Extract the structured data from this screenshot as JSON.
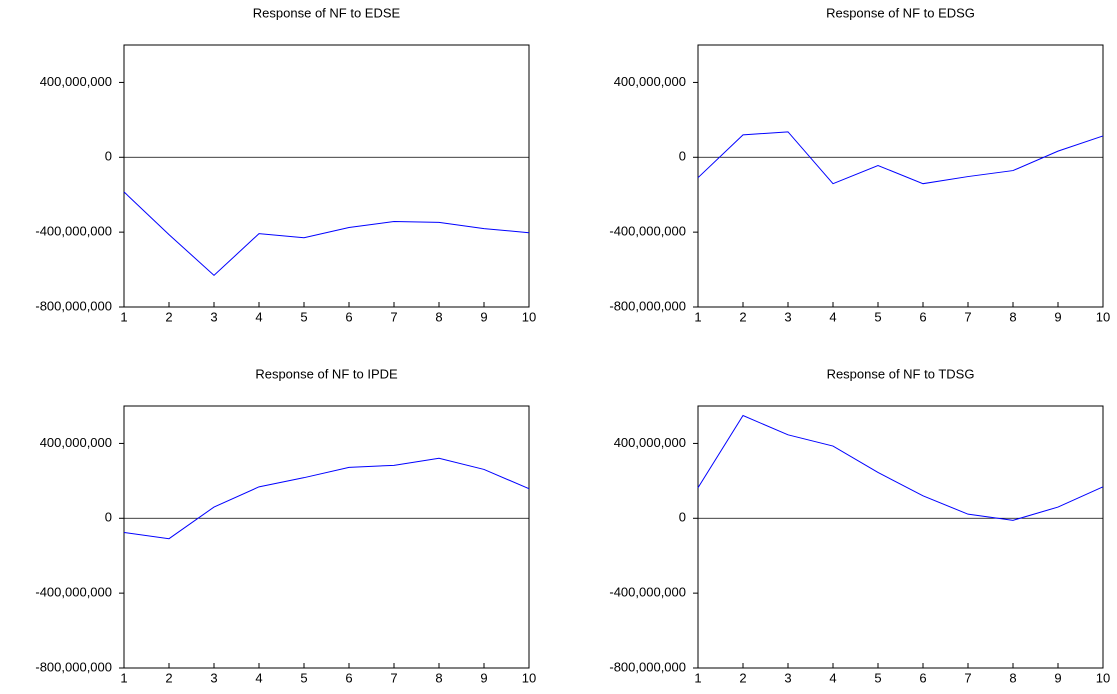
{
  "chart_data": [
    {
      "type": "line",
      "title": "Response of NF to EDSE",
      "x": [
        1,
        2,
        3,
        4,
        5,
        6,
        7,
        8,
        9,
        10
      ],
      "xlim": [
        1,
        10
      ],
      "xticks": [
        1,
        2,
        3,
        4,
        5,
        6,
        7,
        8,
        9,
        10
      ],
      "ylim": [
        -800000000,
        600000000
      ],
      "yticks": [
        {
          "value": -800000000,
          "label": "-800,000,000"
        },
        {
          "value": -400000000,
          "label": "-400,000,000"
        },
        0,
        {
          "value": 400000000,
          "label": "400,000,000"
        }
      ],
      "zero_line": true,
      "series": [
        {
          "color": "#0000ff",
          "values": [
            -185000000,
            -413000000,
            -631000000,
            -408000000,
            -430000000,
            -375000000,
            -343000000,
            -348000000,
            -381000000,
            -403000000
          ]
        }
      ]
    },
    {
      "type": "line",
      "title": "Response of NF to EDSG",
      "x": [
        1,
        2,
        3,
        4,
        5,
        6,
        7,
        8,
        9,
        10
      ],
      "xlim": [
        1,
        10
      ],
      "xticks": [
        1,
        2,
        3,
        4,
        5,
        6,
        7,
        8,
        9,
        10
      ],
      "ylim": [
        -800000000,
        600000000
      ],
      "yticks": [
        {
          "value": -800000000,
          "label": "-800,000,000"
        },
        {
          "value": -400000000,
          "label": "-400,000,000"
        },
        0,
        {
          "value": 400000000,
          "label": "400,000,000"
        }
      ],
      "zero_line": true,
      "series": [
        {
          "color": "#0000ff",
          "values": [
            -109000000,
            120000000,
            136000000,
            -141000000,
            -44000000,
            -141000000,
            -103000000,
            -71000000,
            33000000,
            114000000
          ]
        }
      ]
    },
    {
      "type": "line",
      "title": "Response of NF to IPDE",
      "x": [
        1,
        2,
        3,
        4,
        5,
        6,
        7,
        8,
        9,
        10
      ],
      "xlim": [
        1,
        10
      ],
      "xticks": [
        1,
        2,
        3,
        4,
        5,
        6,
        7,
        8,
        9,
        10
      ],
      "ylim": [
        -800000000,
        600000000
      ],
      "yticks": [
        {
          "value": -800000000,
          "label": "-800,000,000"
        },
        {
          "value": -400000000,
          "label": "-400,000,000"
        },
        0,
        {
          "value": 400000000,
          "label": "400,000,000"
        }
      ],
      "zero_line": true,
      "series": [
        {
          "color": "#0000ff",
          "values": [
            -76000000,
            -109000000,
            60000000,
            168000000,
            217000000,
            272000000,
            283000000,
            321000000,
            261000000,
            158000000
          ]
        }
      ]
    },
    {
      "type": "line",
      "title": "Response of NF to TDSG",
      "x": [
        1,
        2,
        3,
        4,
        5,
        6,
        7,
        8,
        9,
        10
      ],
      "xlim": [
        1,
        10
      ],
      "xticks": [
        1,
        2,
        3,
        4,
        5,
        6,
        7,
        8,
        9,
        10
      ],
      "ylim": [
        -800000000,
        600000000
      ],
      "yticks": [
        {
          "value": -800000000,
          "label": "-800,000,000"
        },
        {
          "value": -400000000,
          "label": "-400,000,000"
        },
        0,
        {
          "value": 400000000,
          "label": "400,000,000"
        }
      ],
      "zero_line": true,
      "series": [
        {
          "color": "#0000ff",
          "values": [
            163000000,
            549000000,
            446000000,
            386000000,
            245000000,
            120000000,
            22000000,
            -11000000,
            60000000,
            168000000
          ]
        }
      ]
    }
  ]
}
